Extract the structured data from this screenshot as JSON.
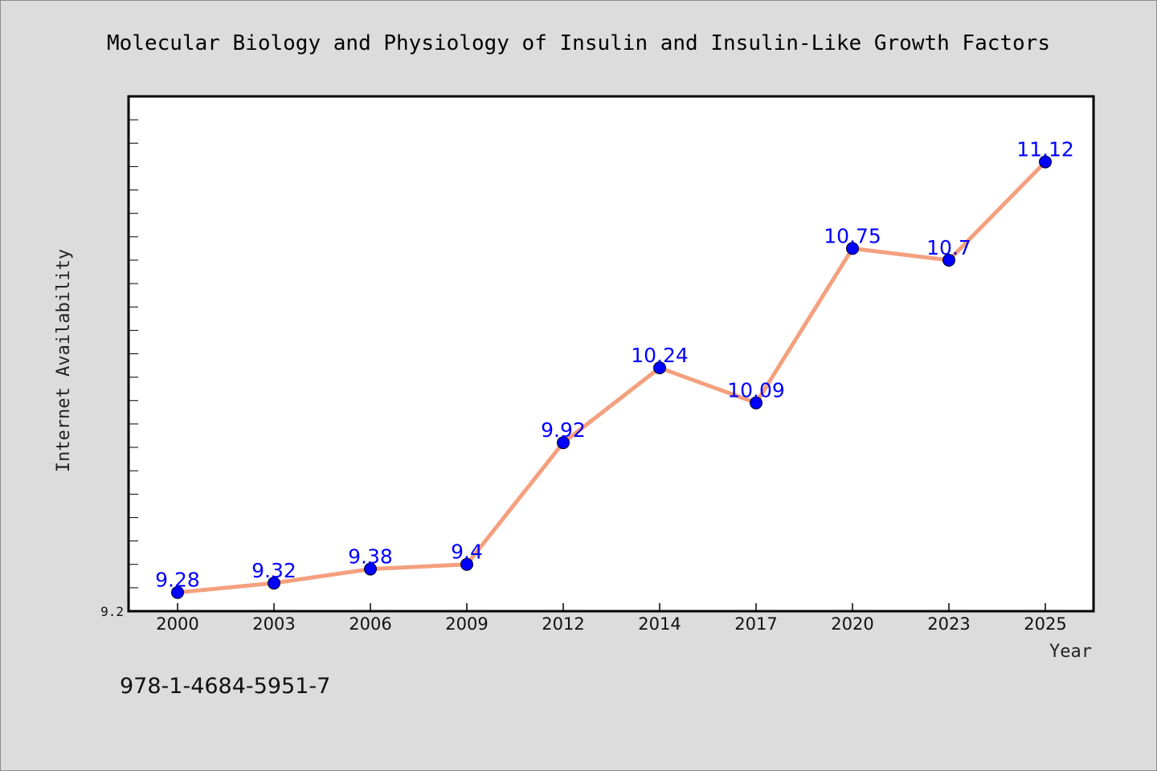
{
  "page": {
    "footnote": "978-1-4684-5951-7"
  },
  "colors": {
    "background": "#dcdcdc",
    "plot_background": "#ffffff",
    "line": "#f4a07e",
    "marker": "#0000ff",
    "data_label": "#0000ff"
  },
  "chart_data": {
    "type": "line",
    "title": "Molecular Biology and Physiology of Insulin and Insulin-Like Growth Factors",
    "xlabel": "Year",
    "ylabel": "Internet Availability",
    "categories": [
      "2000",
      "2003",
      "2006",
      "2009",
      "2012",
      "2014",
      "2017",
      "2020",
      "2023",
      "2025"
    ],
    "series": [
      {
        "values": [
          9.28,
          9.32,
          9.38,
          9.4,
          9.92,
          10.24,
          10.09,
          10.75,
          10.7,
          11.12
        ],
        "labels": [
          "9.28",
          "9.32",
          "9.38",
          "9.4",
          "9.92",
          "10.24",
          "10.09",
          "10.75",
          "10.7",
          "11.12"
        ]
      }
    ],
    "y_tick_labels": [
      "9.2"
    ],
    "ylim": [
      9.2,
      11.4
    ],
    "grid": false,
    "legend": "none"
  }
}
